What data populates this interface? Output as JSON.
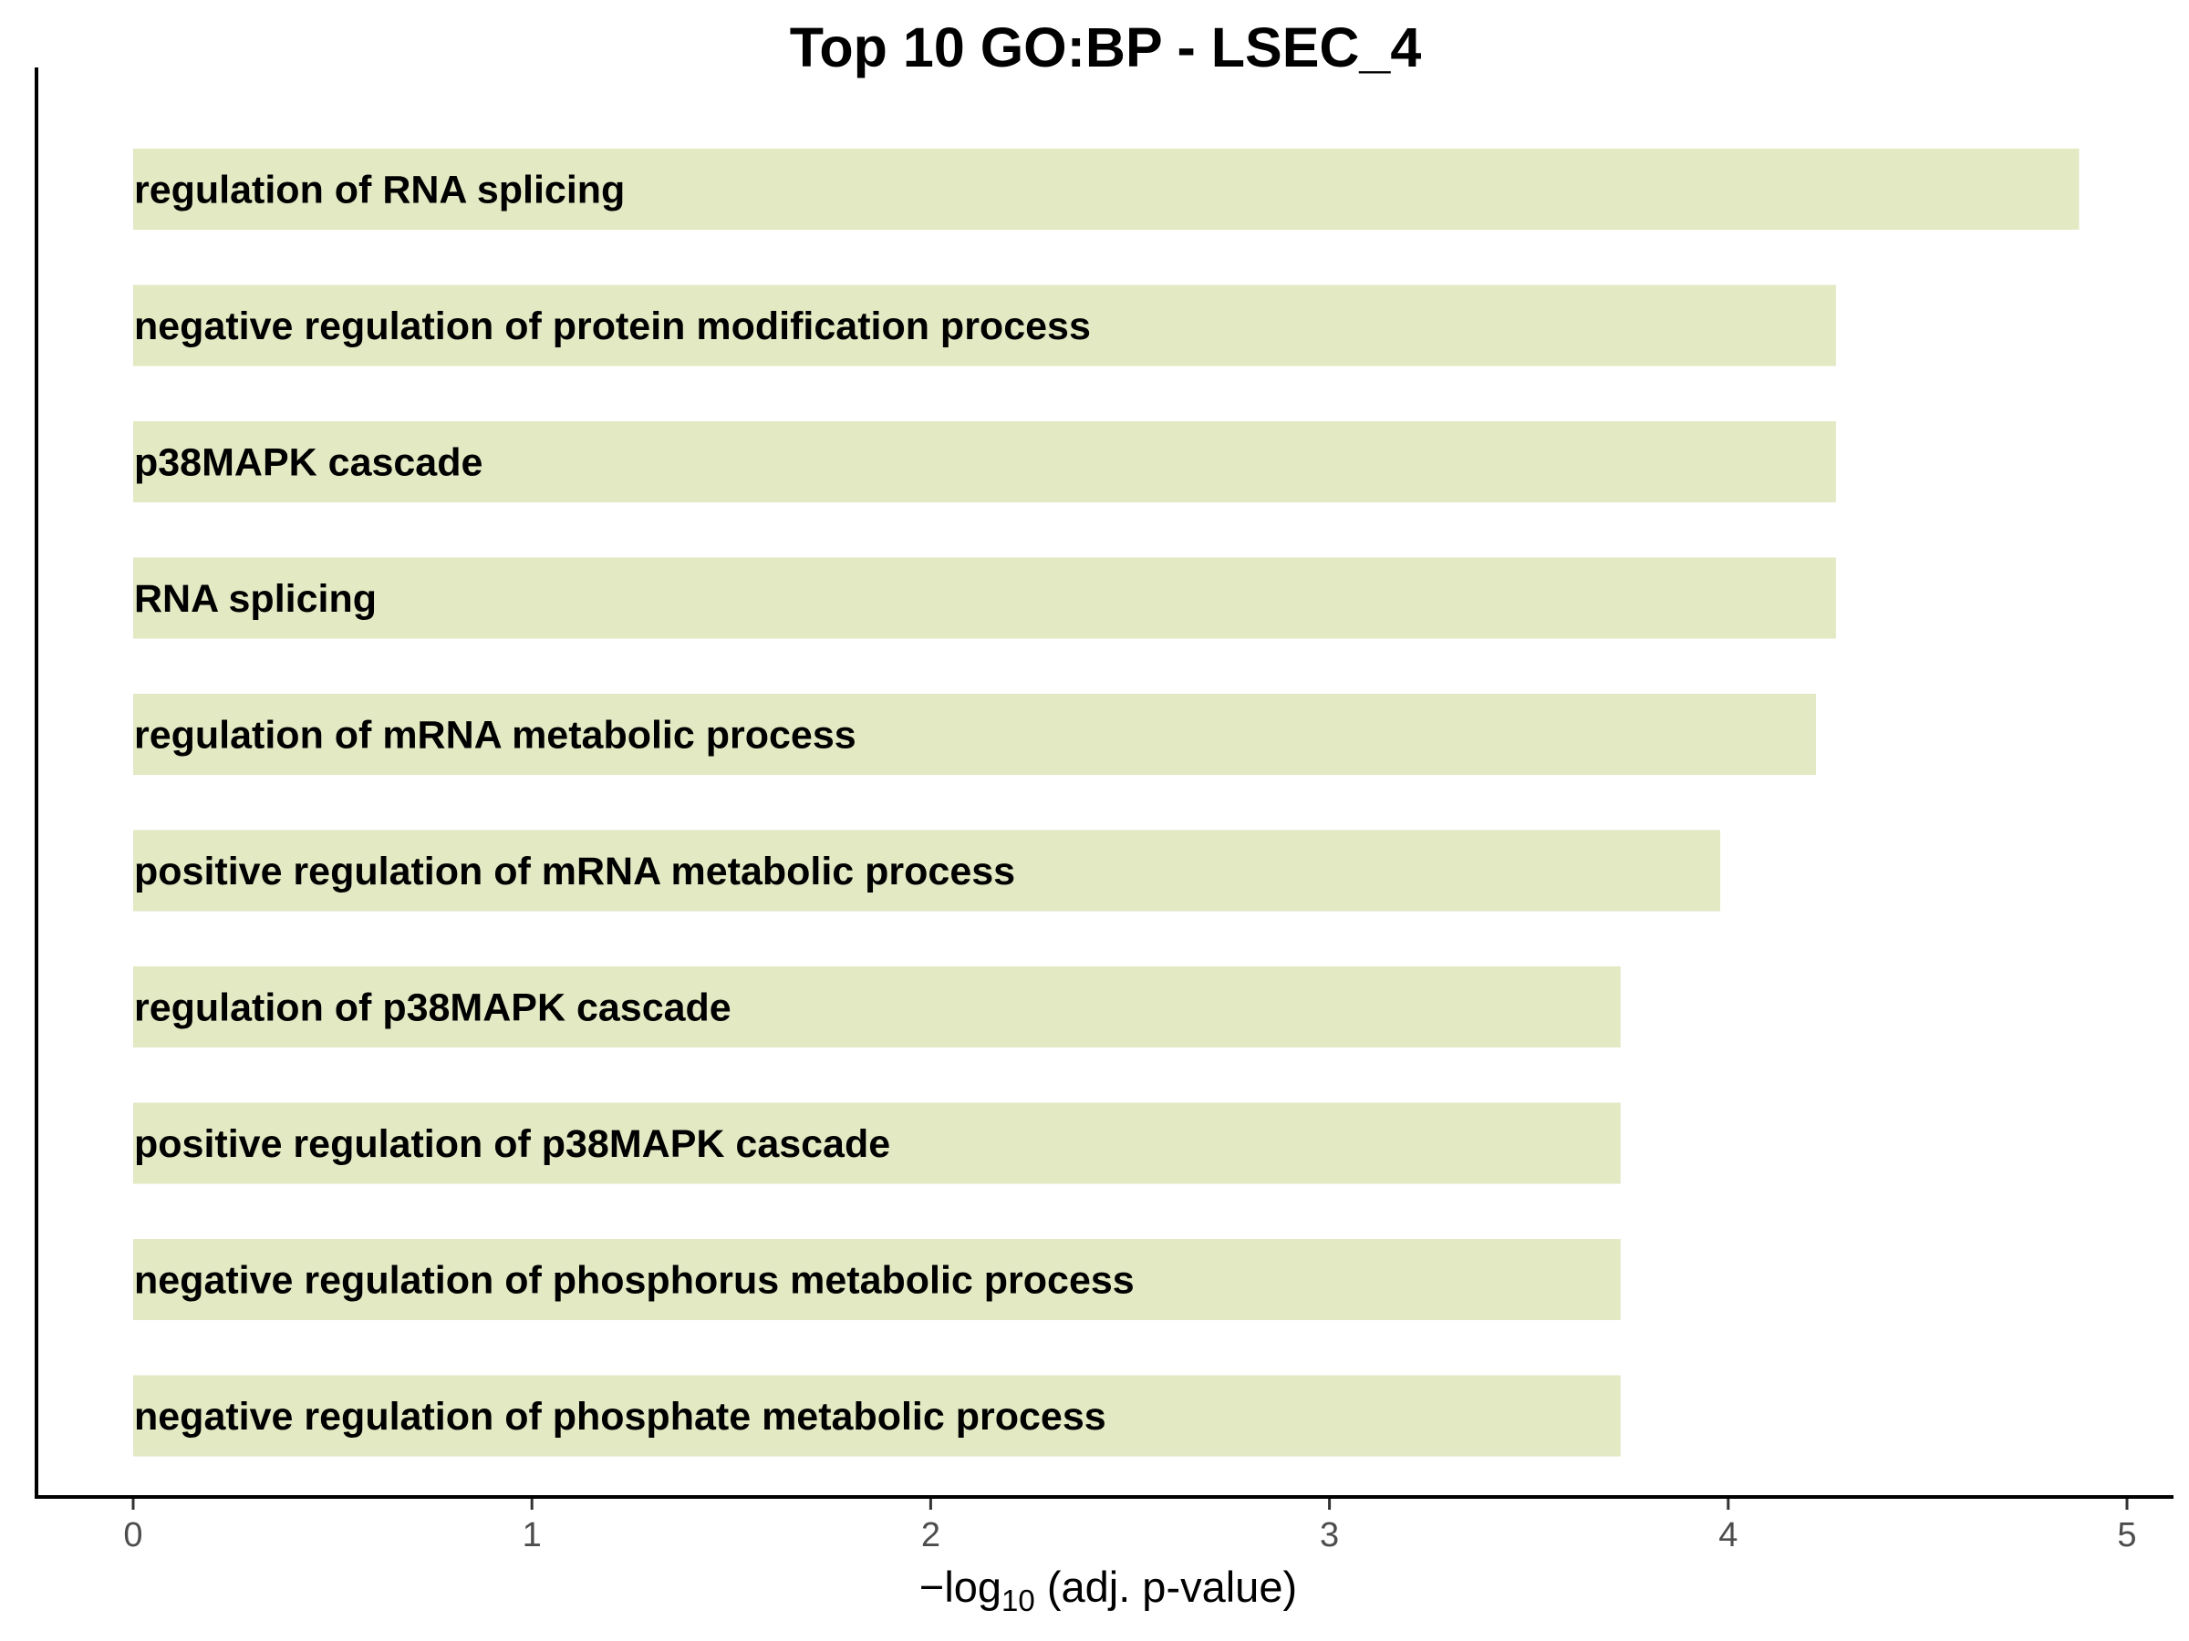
{
  "chart_data": {
    "type": "bar",
    "orientation": "horizontal",
    "title": "Top 10 GO:BP - LSEC_4",
    "xlabel": {
      "prefix": "−log",
      "subscript": "10",
      "suffix": " (adj. p-value)"
    },
    "ylabel": "",
    "xlim": [
      0,
      5
    ],
    "xticks": [
      "0",
      "1",
      "2",
      "3",
      "4",
      "5"
    ],
    "grid": false,
    "legend": "none",
    "bar_color": "#e2e9c3",
    "categories": [
      "regulation of RNA splicing",
      "negative regulation of protein modification process",
      "p38MAPK cascade",
      "RNA splicing",
      "regulation of mRNA metabolic process",
      "positive regulation of mRNA metabolic process",
      "regulation of p38MAPK cascade",
      "positive regulation of p38MAPK cascade",
      "negative regulation of phosphorus metabolic process",
      "negative regulation of phosphate metabolic process"
    ],
    "values": [
      4.88,
      4.27,
      4.27,
      4.27,
      4.22,
      3.98,
      3.73,
      3.73,
      3.73,
      3.73
    ]
  }
}
